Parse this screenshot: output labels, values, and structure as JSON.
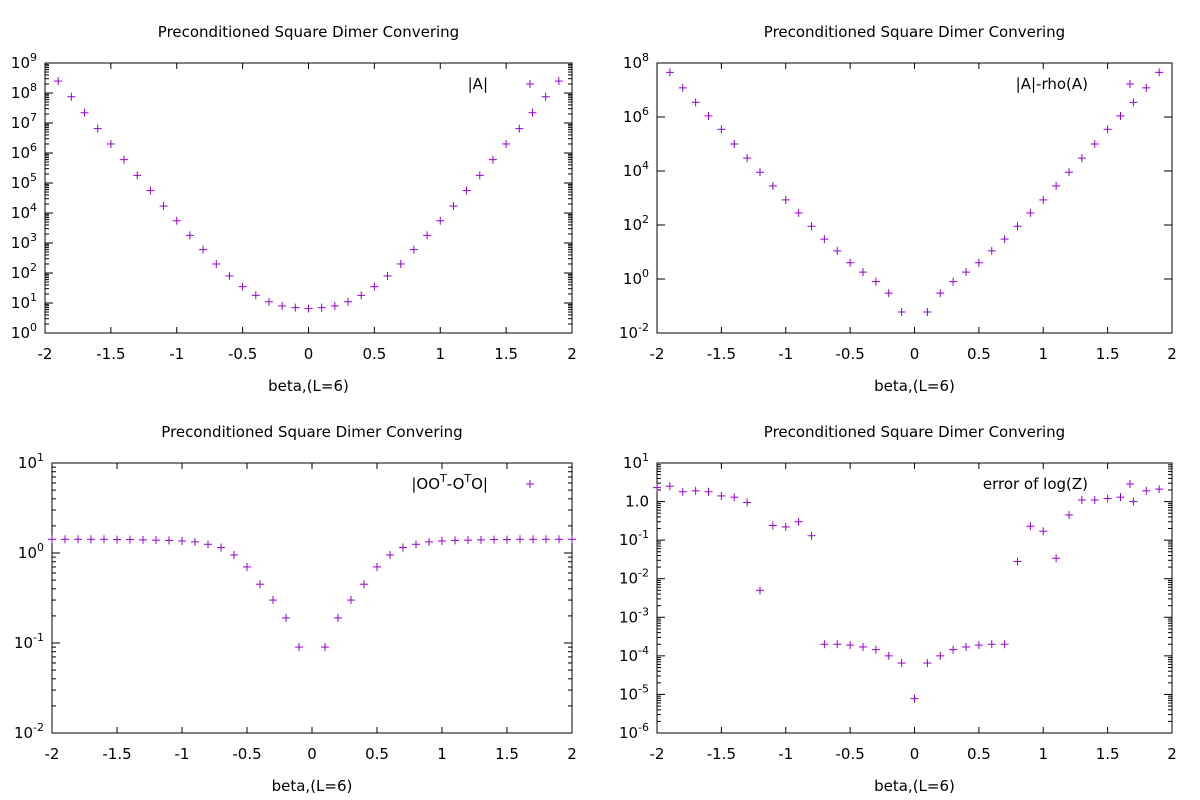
{
  "point_color": "#9400d3",
  "chart_data": [
    {
      "type": "scatter",
      "title": "Preconditioned Square Dimer Convering",
      "xlabel": "beta,(L=6)",
      "ylabel": "",
      "xlim": [
        -2,
        2
      ],
      "ylim": [
        1,
        1000000000
      ],
      "yscale": "log",
      "xticks": [
        "-2",
        "-1.5",
        "-1",
        "-0.5",
        "0",
        "0.5",
        "1",
        "1.5",
        "2"
      ],
      "yticks": [
        {
          "base": "10",
          "exp": "0"
        },
        {
          "base": "10",
          "exp": "1"
        },
        {
          "base": "10",
          "exp": "2"
        },
        {
          "base": "10",
          "exp": "3"
        },
        {
          "base": "10",
          "exp": "4"
        },
        {
          "base": "10",
          "exp": "5"
        },
        {
          "base": "10",
          "exp": "6"
        },
        {
          "base": "10",
          "exp": "7"
        },
        {
          "base": "10",
          "exp": "8"
        },
        {
          "base": "10",
          "exp": "9"
        }
      ],
      "legend": "top-right",
      "series": [
        {
          "name": "|A|",
          "x": [
            -1.9,
            -1.8,
            -1.7,
            -1.6,
            -1.5,
            -1.4,
            -1.3,
            -1.2,
            -1.1,
            -1.0,
            -0.9,
            -0.8,
            -0.7,
            -0.6,
            -0.5,
            -0.4,
            -0.3,
            -0.2,
            -0.1,
            0.0,
            0.1,
            0.2,
            0.3,
            0.4,
            0.5,
            0.6,
            0.7,
            0.8,
            0.9,
            1.0,
            1.1,
            1.2,
            1.3,
            1.4,
            1.5,
            1.6,
            1.7,
            1.8,
            1.9
          ],
          "y": [
            250000000,
            75000000,
            22000000,
            6500000,
            2000000,
            600000,
            180000,
            56000,
            17000,
            5500,
            1800,
            600,
            200,
            80,
            35,
            18,
            11,
            8,
            7,
            6.5,
            7,
            8,
            11,
            18,
            35,
            80,
            200,
            600,
            1800,
            5500,
            17000,
            56000,
            180000,
            600000,
            2000000,
            6500000,
            22000000,
            75000000,
            250000000
          ]
        }
      ]
    },
    {
      "type": "scatter",
      "title": "Preconditioned Square Dimer Convering",
      "xlabel": "beta,(L=6)",
      "ylabel": "",
      "xlim": [
        -2,
        2
      ],
      "ylim": [
        0.01,
        100000000
      ],
      "yscale": "log",
      "xticks": [
        "-2",
        "-1.5",
        "-1",
        "-0.5",
        "0",
        "0.5",
        "1",
        "1.5",
        "2"
      ],
      "yticks": [
        {
          "base": "10",
          "exp": "-2"
        },
        {
          "base": "10",
          "exp": "0"
        },
        {
          "base": "10",
          "exp": "2"
        },
        {
          "base": "10",
          "exp": "4"
        },
        {
          "base": "10",
          "exp": "6"
        },
        {
          "base": "10",
          "exp": "8"
        }
      ],
      "legend": "top-right",
      "series": [
        {
          "name": "|A|-rho(A)",
          "x": [
            -1.9,
            -1.8,
            -1.7,
            -1.6,
            -1.5,
            -1.4,
            -1.3,
            -1.2,
            -1.1,
            -1.0,
            -0.9,
            -0.8,
            -0.7,
            -0.6,
            -0.5,
            -0.4,
            -0.3,
            -0.2,
            -0.1,
            0.1,
            0.2,
            0.3,
            0.4,
            0.5,
            0.6,
            0.7,
            0.8,
            0.9,
            1.0,
            1.1,
            1.2,
            1.3,
            1.4,
            1.5,
            1.6,
            1.7,
            1.8,
            1.9
          ],
          "y": [
            45000000,
            12000000,
            3500000,
            1100000,
            350000,
            100000,
            30000,
            9000,
            2800,
            850,
            280,
            90,
            30,
            11,
            4,
            1.8,
            0.8,
            0.3,
            0.06,
            0.06,
            0.3,
            0.8,
            1.8,
            4,
            11,
            30,
            90,
            280,
            850,
            2800,
            9000,
            30000,
            100000,
            350000,
            1100000,
            3500000,
            12000000,
            45000000
          ]
        }
      ]
    },
    {
      "type": "scatter",
      "title": "Preconditioned Square Dimer Convering",
      "xlabel": "beta,(L=6)",
      "ylabel": "",
      "xlim": [
        -2,
        2
      ],
      "ylim": [
        0.01,
        10
      ],
      "yscale": "log",
      "xticks": [
        "-2",
        "-1.5",
        "-1",
        "-0.5",
        "0",
        "0.5",
        "1",
        "1.5",
        "2"
      ],
      "yticks": [
        {
          "base": "10",
          "exp": "-2"
        },
        {
          "base": "10",
          "exp": "-1"
        },
        {
          "base": "10",
          "exp": "0"
        },
        {
          "base": "10",
          "exp": "1"
        }
      ],
      "legend": "top-right",
      "legend_parts": [
        "|OO",
        "T",
        "-O",
        "T",
        "O|"
      ],
      "series": [
        {
          "name": "|OOT-OTO|",
          "x": [
            -2.0,
            -1.9,
            -1.8,
            -1.7,
            -1.6,
            -1.5,
            -1.4,
            -1.3,
            -1.2,
            -1.1,
            -1.0,
            -0.9,
            -0.8,
            -0.7,
            -0.6,
            -0.5,
            -0.4,
            -0.3,
            -0.2,
            -0.1,
            0.1,
            0.2,
            0.3,
            0.4,
            0.5,
            0.6,
            0.7,
            0.8,
            0.9,
            1.0,
            1.1,
            1.2,
            1.3,
            1.4,
            1.5,
            1.6,
            1.7,
            1.8,
            1.9,
            2.0
          ],
          "y": [
            1.42,
            1.42,
            1.42,
            1.42,
            1.42,
            1.41,
            1.41,
            1.4,
            1.39,
            1.38,
            1.36,
            1.33,
            1.25,
            1.15,
            0.95,
            0.7,
            0.45,
            0.3,
            0.19,
            0.09,
            0.09,
            0.19,
            0.3,
            0.45,
            0.7,
            0.95,
            1.15,
            1.25,
            1.33,
            1.36,
            1.38,
            1.39,
            1.4,
            1.41,
            1.41,
            1.42,
            1.42,
            1.42,
            1.42,
            1.42
          ]
        }
      ]
    },
    {
      "type": "scatter",
      "title": "Preconditioned Square Dimer Convering",
      "xlabel": "beta,(L=6)",
      "ylabel": "",
      "xlim": [
        -2,
        2
      ],
      "ylim": [
        1e-06,
        10
      ],
      "yscale": "log",
      "xticks": [
        "-2",
        "-1.5",
        "-1",
        "-0.5",
        "0",
        "0.5",
        "1",
        "1.5",
        "2"
      ],
      "yticks": [
        {
          "base": "10",
          "exp": "-6"
        },
        {
          "base": "10",
          "exp": "-5"
        },
        {
          "base": "10",
          "exp": "-4"
        },
        {
          "base": "10",
          "exp": "-3"
        },
        {
          "base": "10",
          "exp": "-2"
        },
        {
          "base": "10",
          "exp": "-1"
        },
        {
          "base": "1.0",
          "exp": ""
        },
        {
          "base": "10",
          "exp": "1"
        }
      ],
      "tick_format": "decimal_exp",
      "legend": "top-right",
      "series": [
        {
          "name": "error of log(Z)",
          "x": [
            -2.0,
            -1.9,
            -1.8,
            -1.7,
            -1.6,
            -1.5,
            -1.4,
            -1.3,
            -1.2,
            -1.1,
            -1.0,
            -0.9,
            -0.8,
            -0.7,
            -0.6,
            -0.5,
            -0.4,
            -0.3,
            -0.2,
            -0.1,
            0.0,
            0.1,
            0.2,
            0.3,
            0.4,
            0.5,
            0.6,
            0.7,
            0.8,
            0.9,
            1.0,
            1.1,
            1.2,
            1.3,
            1.4,
            1.5,
            1.6,
            1.7,
            1.8,
            1.9
          ],
          "y": [
            2.3,
            2.5,
            1.8,
            1.9,
            1.8,
            1.4,
            1.3,
            0.95,
            0.005,
            0.24,
            0.22,
            0.3,
            0.13,
            0.0002,
            0.0002,
            0.00019,
            0.00017,
            0.000145,
            0.0001,
            6.5e-05,
            7.8e-06,
            6.5e-05,
            0.0001,
            0.000145,
            0.00017,
            0.00019,
            0.0002,
            0.0002,
            0.028,
            0.23,
            0.17,
            0.034,
            0.45,
            1.1,
            1.1,
            1.2,
            1.3,
            1.0,
            1.9,
            2.1
          ]
        }
      ]
    }
  ]
}
